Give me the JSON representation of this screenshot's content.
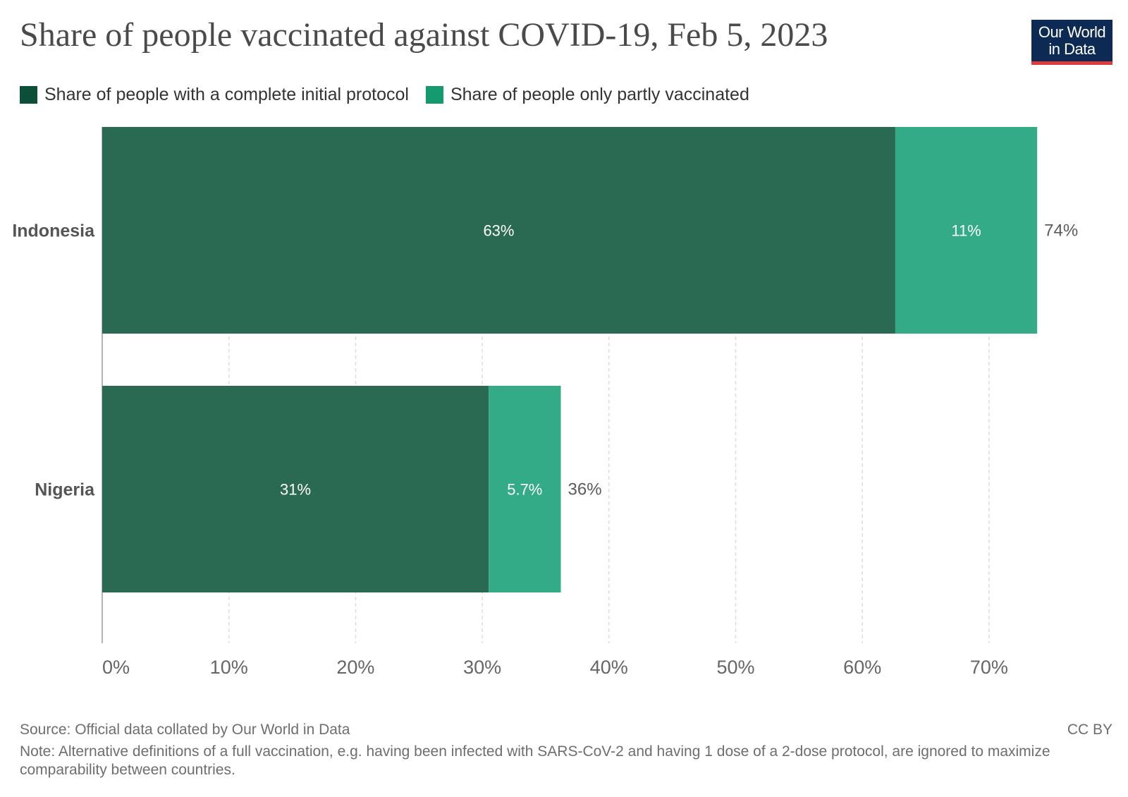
{
  "header": {
    "title": "Share of people vaccinated against COVID-19, Feb 5, 2023",
    "logo_line1": "Our World",
    "logo_line2": "in Data"
  },
  "footer": {
    "source": "Source: Official data collated by Our World in Data",
    "license": "CC BY",
    "note": "Note: Alternative definitions of a full vaccination, e.g. having been infected with SARS-CoV-2 and having 1 dose of a 2-dose protocol, are ignored to maximize comparability between countries."
  },
  "colors": {
    "complete": "#2a6a52",
    "partly": "#32ab86",
    "legend_complete": "#0b4f39",
    "legend_partly": "#15996e",
    "grid": "#dddddd",
    "axis": "#999999"
  },
  "chart_data": {
    "type": "bar",
    "orientation": "horizontal",
    "stacked": true,
    "categories": [
      "Indonesia",
      "Nigeria"
    ],
    "series": [
      {
        "name": "Share of people with a complete initial protocol",
        "values": [
          62.6,
          30.5
        ],
        "labels": [
          "63%",
          "31%"
        ]
      },
      {
        "name": "Share of people only partly vaccinated",
        "values": [
          11.2,
          5.7
        ],
        "labels": [
          "11%",
          "5.7%"
        ]
      }
    ],
    "totals": [
      "74%",
      "36%"
    ],
    "xlim": [
      0,
      70
    ],
    "xticks": [
      0,
      10,
      20,
      30,
      40,
      50,
      60,
      70
    ],
    "xtick_labels": [
      "0%",
      "10%",
      "20%",
      "30%",
      "40%",
      "50%",
      "60%",
      "70%"
    ],
    "grid": true,
    "legend": "top-left",
    "xlabel": "",
    "ylabel": ""
  }
}
